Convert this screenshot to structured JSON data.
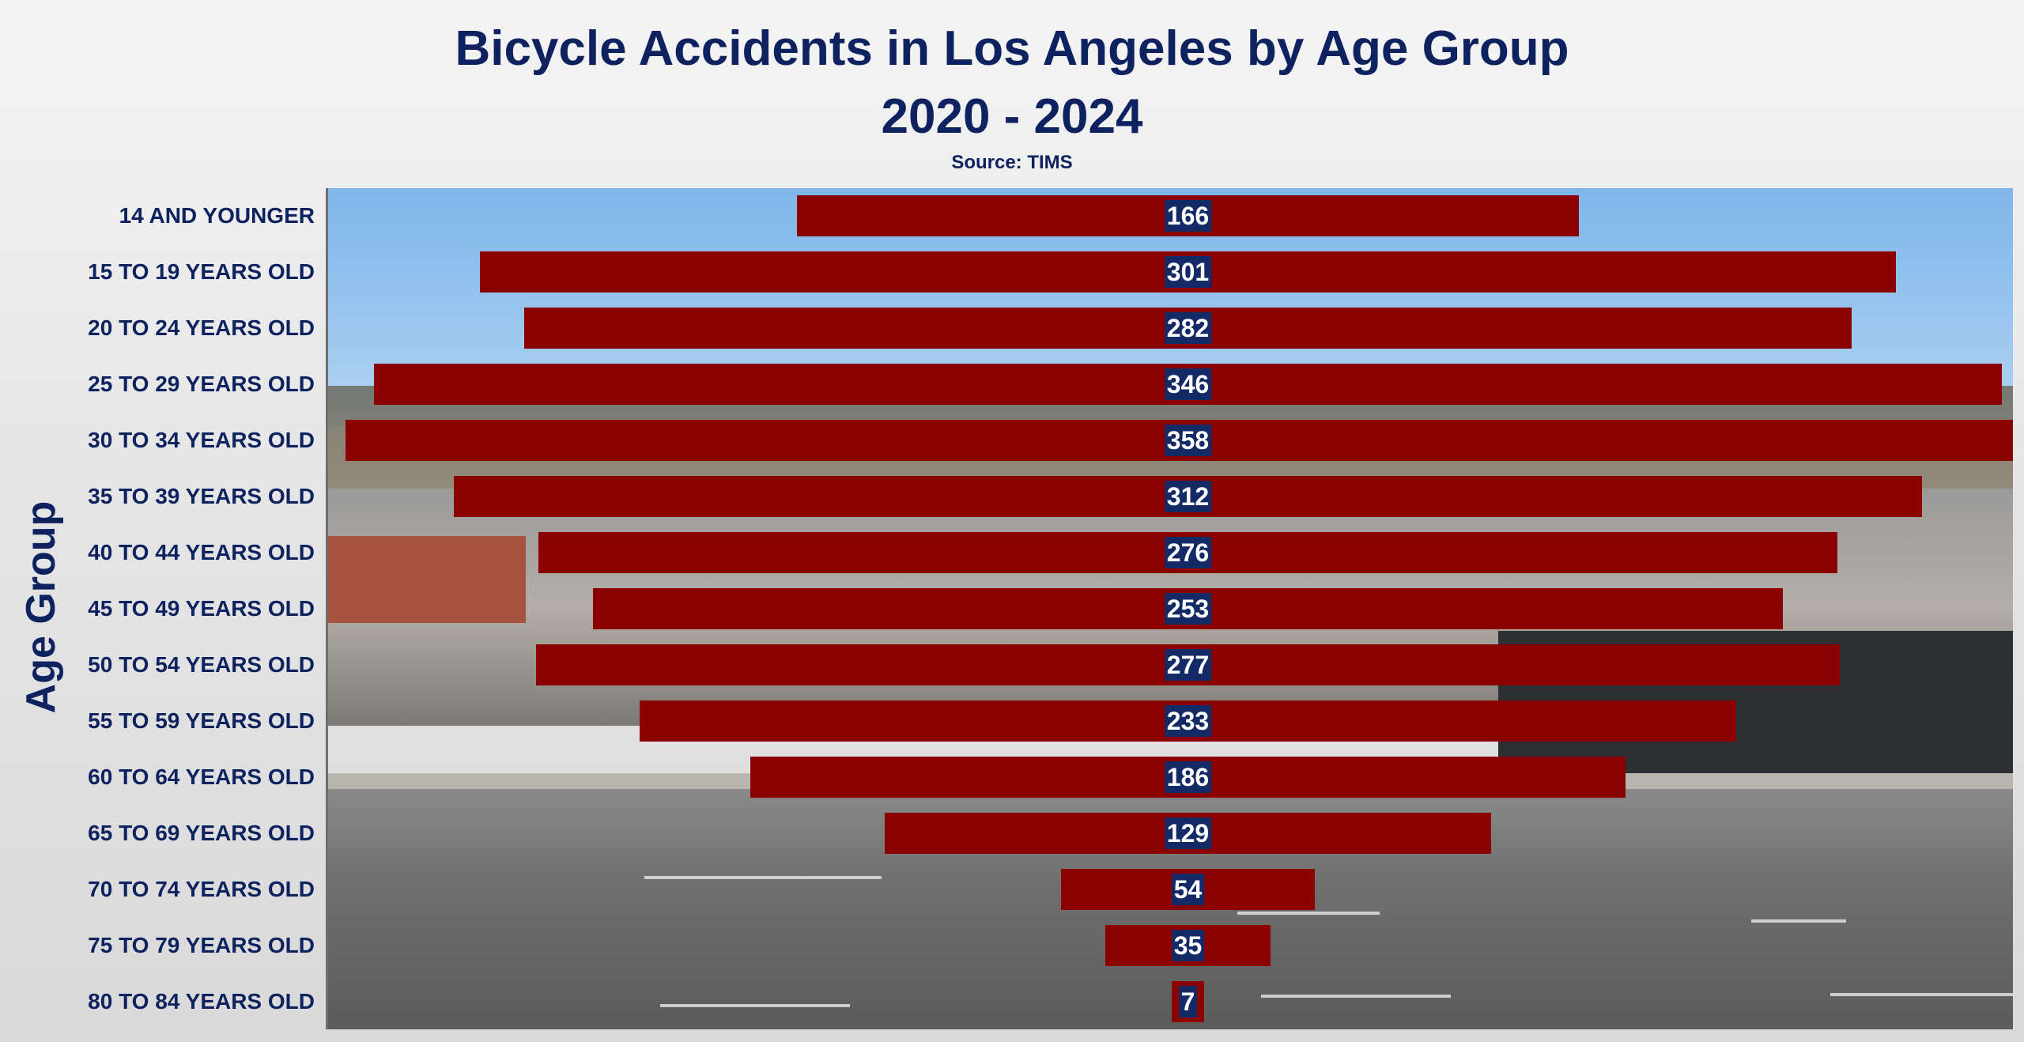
{
  "chart_data": {
    "type": "bar",
    "orientation": "horizontal",
    "alignment": "centered",
    "title": "Bicycle Accidents in Los Angeles by Age Group",
    "subtitle": "2020 - 2024",
    "source": "Source: TIMS",
    "ylabel": "Age Group",
    "xlabel": "",
    "grid": false,
    "legend": "none",
    "bar_color": "#8b0000",
    "label_bg_color": "#142a66",
    "categories": [
      "14 AND YOUNGER",
      "15 TO 19 YEARS OLD",
      "20 TO 24 YEARS OLD",
      "25 TO 29 YEARS OLD",
      "30 TO 34 YEARS OLD",
      "35 TO 39 YEARS OLD",
      "40 TO 44 YEARS OLD",
      "45 TO 49 YEARS OLD",
      "50 TO 54 YEARS OLD",
      "55 TO 59 YEARS OLD",
      "60 TO 64 YEARS OLD",
      "65 TO 69 YEARS OLD",
      "70 TO 74 YEARS OLD",
      "75 TO 79 YEARS OLD",
      "80 TO 84 YEARS OLD"
    ],
    "values": [
      166,
      301,
      282,
      346,
      358,
      312,
      276,
      253,
      277,
      233,
      186,
      129,
      54,
      35,
      7
    ],
    "xlim": [
      0,
      358
    ]
  }
}
